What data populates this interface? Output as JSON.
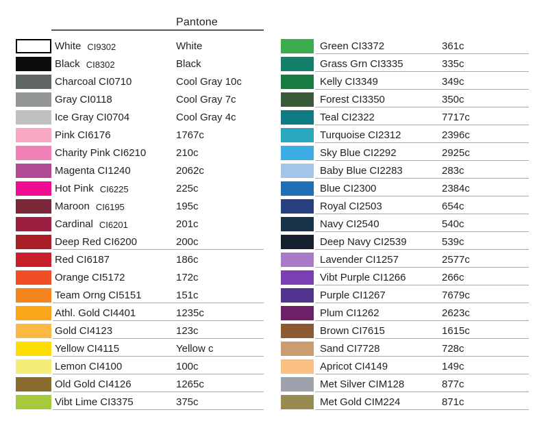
{
  "header": {
    "pantone_label": "Pantone"
  },
  "styles": {
    "background": "#ffffff",
    "text_color": "#231f20",
    "row_rule_color": "#a8aaad",
    "header_rule_color": "#55565a"
  },
  "columns": [
    {
      "id": "left",
      "rows": [
        {
          "name": "White",
          "code": "CI9302",
          "pantone": "White",
          "color": "#ffffff",
          "swatch_border": true,
          "code_offset": true,
          "underline": false
        },
        {
          "name": "Black",
          "code": "CI8302",
          "pantone": "Black",
          "color": "#0d0d0d",
          "code_offset": true,
          "underline": false
        },
        {
          "name": "Charcoal",
          "code": "CI0710",
          "pantone": "Cool Gray 10c",
          "color": "#5f6663",
          "underline": false
        },
        {
          "name": "Gray",
          "code": "CI0118",
          "pantone": "Cool Gray 7c",
          "color": "#949798",
          "underline": false
        },
        {
          "name": "Ice Gray",
          "code": "CI0704",
          "pantone": "Cool Gray 4c",
          "color": "#bfc0c2",
          "underline": false
        },
        {
          "name": "Pink",
          "code": "CI6176",
          "pantone": "1767c",
          "color": "#f8a8c5",
          "underline": false
        },
        {
          "name": "Charity Pink",
          "code": "CI6210",
          "pantone": "210c",
          "color": "#f080b6",
          "underline": false
        },
        {
          "name": "Magenta",
          "code": "CI1240",
          "pantone": "2062c",
          "color": "#b04a94",
          "underline": false
        },
        {
          "name": "Hot Pink",
          "code": "CI6225",
          "pantone": "225c",
          "color": "#ef0d92",
          "code_offset": true,
          "underline": false
        },
        {
          "name": "Maroon",
          "code": "CI6195",
          "pantone": "195c",
          "color": "#7b2639",
          "code_offset": true,
          "underline": false
        },
        {
          "name": "Cardinal",
          "code": "CI6201",
          "pantone": "201c",
          "color": "#9e1e41",
          "code_offset": true,
          "underline": false
        },
        {
          "name": "Deep Red",
          "code": "CI6200",
          "pantone": "200c",
          "color": "#aa1e25",
          "underline": true
        },
        {
          "name": "Red",
          "code": "CI6187",
          "pantone": "186c",
          "color": "#c8202b",
          "underline": false
        },
        {
          "name": "Orange",
          "code": "CI5172",
          "pantone": "172c",
          "color": "#f04e25",
          "underline": false
        },
        {
          "name": "Team Orng",
          "code": "CI5151",
          "pantone": "151c",
          "color": "#f5841f",
          "underline": true
        },
        {
          "name": "Athl. Gold",
          "code": "CI4401",
          "pantone": "1235c",
          "color": "#faa61a",
          "underline": true
        },
        {
          "name": "Gold",
          "code": "CI4123",
          "pantone": "123c",
          "color": "#fbb843",
          "underline": true
        },
        {
          "name": "Yellow",
          "code": "CI4115",
          "pantone": "Yellow c",
          "color": "#fedd00",
          "underline": true
        },
        {
          "name": "Lemon",
          "code": "CI4100",
          "pantone": "100c",
          "color": "#f3ec75",
          "underline": true
        },
        {
          "name": "Old Gold",
          "code": "CI4126",
          "pantone": "1265c",
          "color": "#8a6d2e",
          "underline": true
        },
        {
          "name": "Vibt Lime",
          "code": "CI3375",
          "pantone": "375c",
          "color": "#a5cb3c",
          "underline": true
        }
      ]
    },
    {
      "id": "right",
      "rows": [
        {
          "name": "Green",
          "code": "CI3372",
          "pantone": "361c",
          "color": "#3cac4e",
          "underline": true
        },
        {
          "name": "Grass Grn",
          "code": "CI3335",
          "pantone": "335c",
          "color": "#12806a",
          "underline": true
        },
        {
          "name": "Kelly",
          "code": "CI3349",
          "pantone": "349c",
          "color": "#177c42",
          "underline": true
        },
        {
          "name": "Forest",
          "code": "CI3350",
          "pantone": "350c",
          "color": "#3b5a37",
          "underline": true
        },
        {
          "name": "Teal",
          "code": "CI2322",
          "pantone": "7717c",
          "color": "#0e7c82",
          "underline": true
        },
        {
          "name": "Turquoise",
          "code": "CI2312",
          "pantone": "2396c",
          "color": "#2ba6bf",
          "underline": true
        },
        {
          "name": "Sky Blue",
          "code": "CI2292",
          "pantone": "2925c",
          "color": "#3cace2",
          "underline": true
        },
        {
          "name": "Baby Blue",
          "code": "CI2283",
          "pantone": "283c",
          "color": "#a2c6e8",
          "underline": true
        },
        {
          "name": "Blue",
          "code": "CI2300",
          "pantone": "2384c",
          "color": "#1e6fb4",
          "underline": true
        },
        {
          "name": "Royal",
          "code": "CI2503",
          "pantone": "654c",
          "color": "#27417f",
          "underline": true
        },
        {
          "name": "Navy",
          "code": "CI2540",
          "pantone": "540c",
          "color": "#16334a",
          "underline": true
        },
        {
          "name": "Deep Navy",
          "code": "CI2539",
          "pantone": "539c",
          "color": "#14202e",
          "underline": true
        },
        {
          "name": "Lavender",
          "code": "CI1257",
          "pantone": "2577c",
          "color": "#a77bc5",
          "underline": true
        },
        {
          "name": "Vibt Purple",
          "code": "CI1266",
          "pantone": "266c",
          "color": "#7b3fb3",
          "underline": true
        },
        {
          "name": "Purple",
          "code": "CI1267",
          "pantone": "7679c",
          "color": "#4f3590",
          "underline": true
        },
        {
          "name": "Plum",
          "code": "CI1262",
          "pantone": "2623c",
          "color": "#6d2066",
          "underline": true
        },
        {
          "name": "Brown",
          "code": "CI7615",
          "pantone": "1615c",
          "color": "#8c5a32",
          "underline": true
        },
        {
          "name": "Sand",
          "code": "CI7728",
          "pantone": "728c",
          "color": "#cc9c71",
          "underline": true
        },
        {
          "name": "Apricot",
          "code": "CI4149",
          "pantone": "149c",
          "color": "#f9c081",
          "underline": true
        },
        {
          "name": "Met Silver",
          "code": "CIM128",
          "pantone": "877c",
          "color": "#9da3ac",
          "underline": true
        },
        {
          "name": "Met Gold",
          "code": "CIM224",
          "pantone": "871c",
          "color": "#988b52",
          "underline": true
        }
      ]
    }
  ]
}
